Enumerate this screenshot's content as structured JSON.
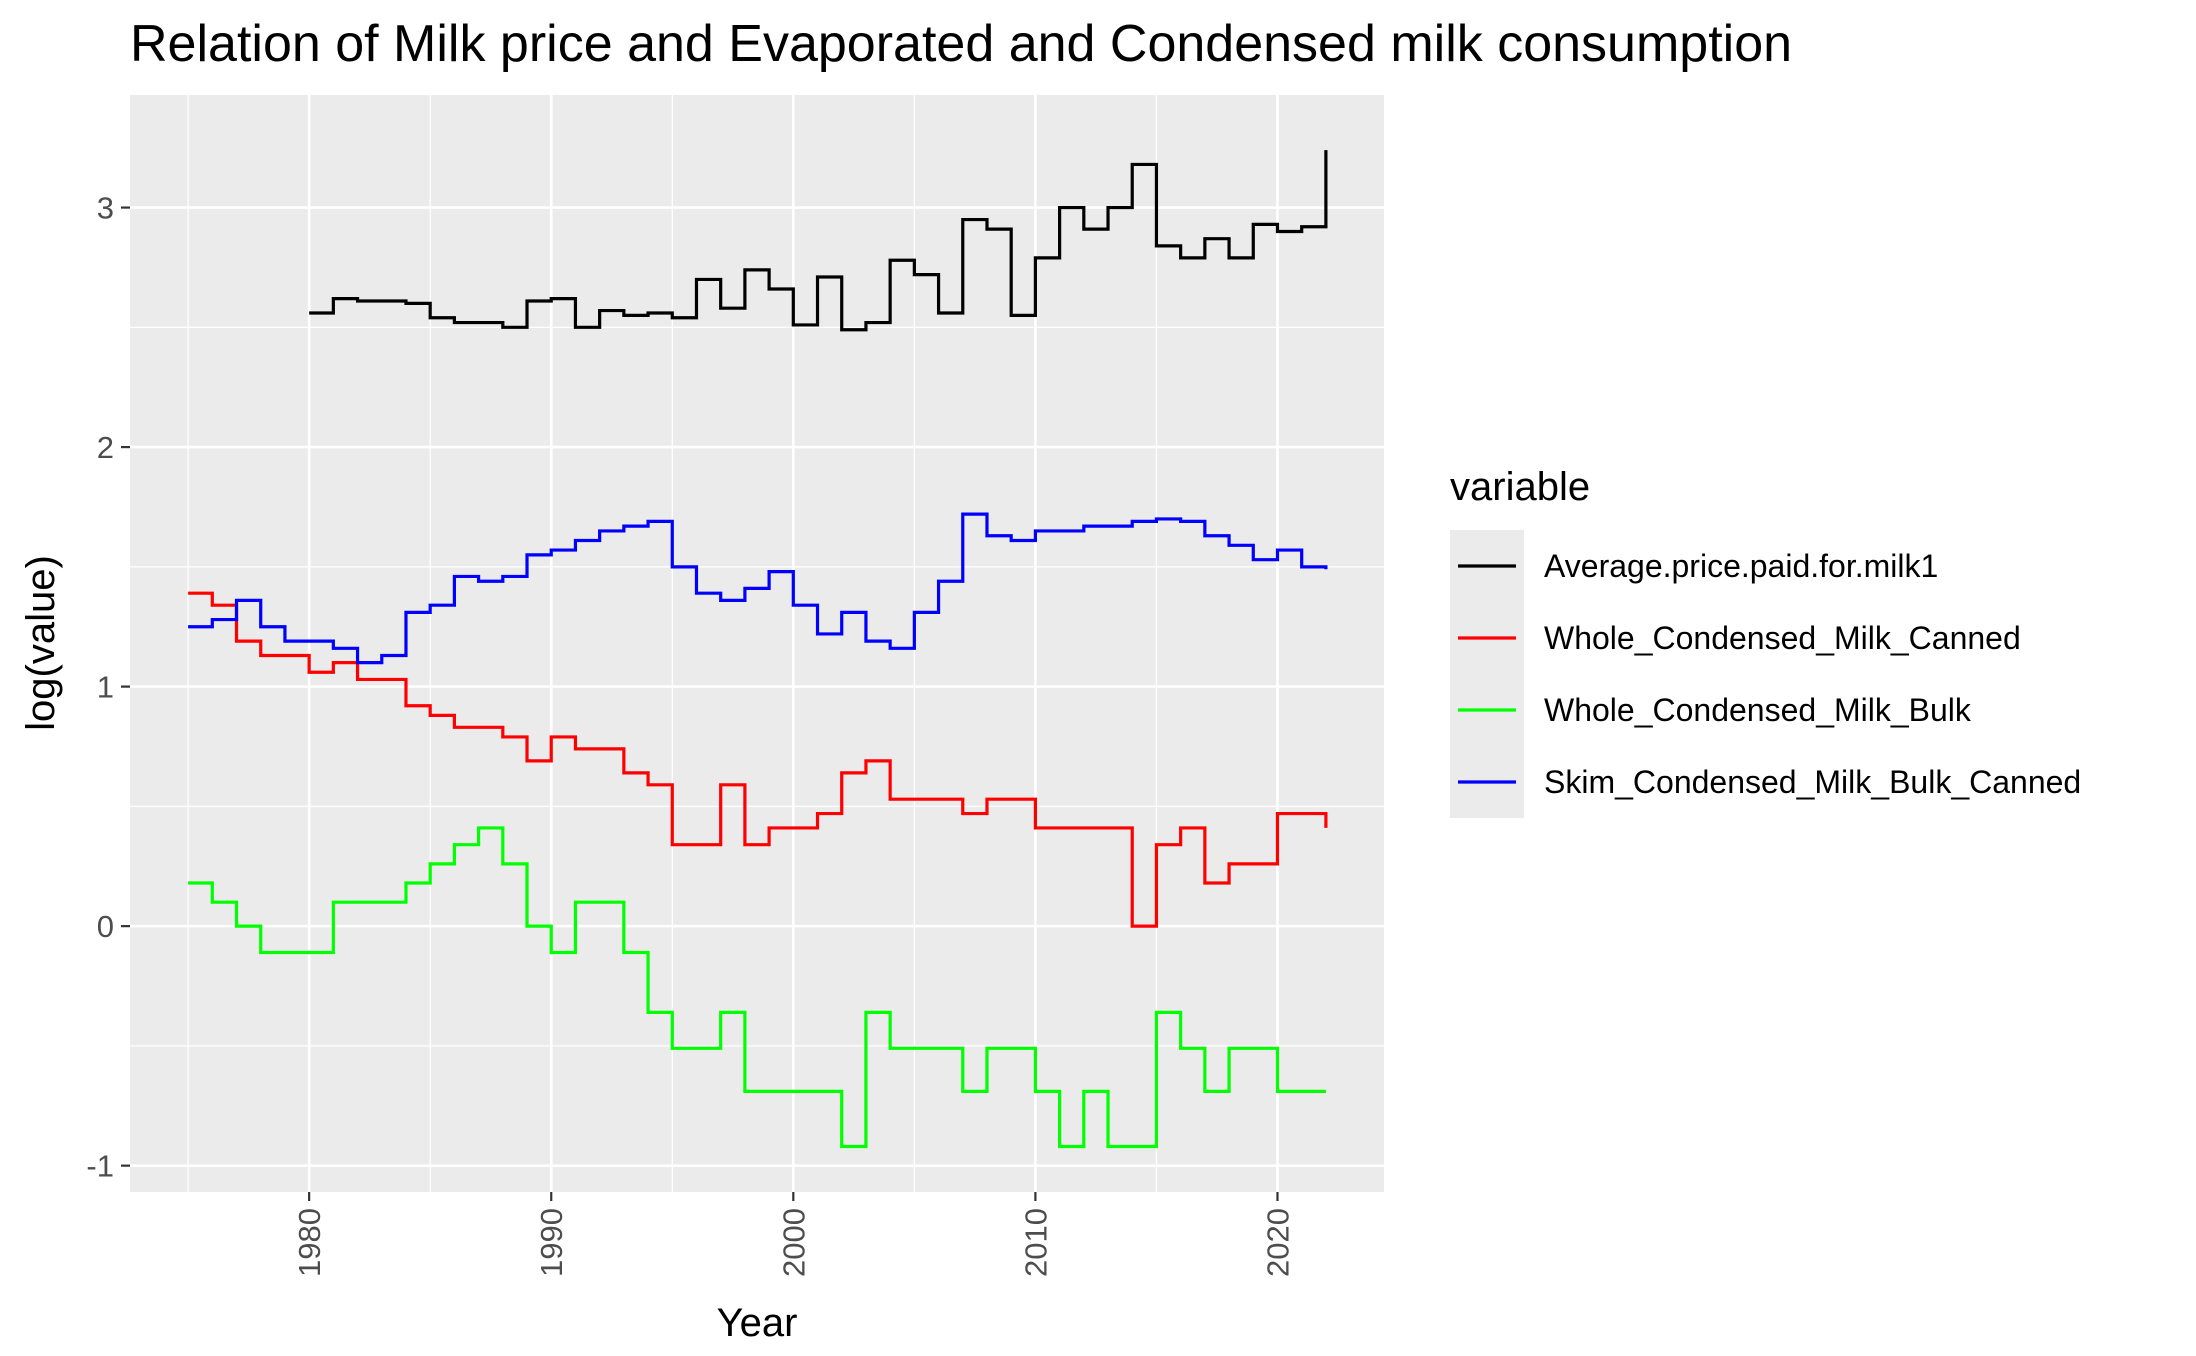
{
  "chart_data": {
    "type": "line",
    "step": true,
    "title": "Relation of Milk price and Evaporated and Condensed milk consumption",
    "xlabel": "Year",
    "ylabel": "log(value)",
    "xlim": [
      1972.6,
      2024.4
    ],
    "ylim": [
      -1.11,
      3.47
    ],
    "x_ticks": [
      1980,
      1990,
      2000,
      2010,
      2020
    ],
    "x_tick_labels": [
      "1980",
      "1990",
      "2000",
      "2010",
      "2020"
    ],
    "y_ticks": [
      -1,
      0,
      1,
      2,
      3
    ],
    "y_tick_labels": [
      "-1",
      "0",
      "1",
      "2",
      "3"
    ],
    "grid": true,
    "legend": {
      "title": "variable",
      "position": "right"
    },
    "panel_background": "#ebebeb",
    "series": [
      {
        "name": "Average.price.paid.for.milk1",
        "color": "#000000",
        "x": [
          1980,
          1981,
          1982,
          1983,
          1984,
          1985,
          1986,
          1987,
          1988,
          1989,
          1990,
          1991,
          1992,
          1993,
          1994,
          1995,
          1996,
          1997,
          1998,
          1999,
          2000,
          2001,
          2002,
          2003,
          2004,
          2005,
          2006,
          2007,
          2008,
          2009,
          2010,
          2011,
          2012,
          2013,
          2014,
          2015,
          2016,
          2017,
          2018,
          2019,
          2020,
          2021,
          2022
        ],
        "values": [
          2.56,
          2.62,
          2.61,
          2.61,
          2.6,
          2.54,
          2.52,
          2.52,
          2.5,
          2.61,
          2.62,
          2.5,
          2.57,
          2.55,
          2.56,
          2.54,
          2.7,
          2.58,
          2.74,
          2.66,
          2.51,
          2.71,
          2.49,
          2.52,
          2.78,
          2.72,
          2.56,
          2.95,
          2.91,
          2.55,
          2.79,
          3.0,
          2.91,
          3.0,
          3.18,
          2.84,
          2.79,
          2.87,
          2.79,
          2.93,
          2.9,
          2.92,
          3.24
        ]
      },
      {
        "name": "Whole_Condensed_Milk_Canned",
        "color": "#ff0000",
        "x": [
          1975,
          1976,
          1977,
          1978,
          1979,
          1980,
          1981,
          1982,
          1983,
          1984,
          1985,
          1986,
          1987,
          1988,
          1989,
          1990,
          1991,
          1992,
          1993,
          1994,
          1995,
          1996,
          1997,
          1998,
          1999,
          2000,
          2001,
          2002,
          2003,
          2004,
          2005,
          2006,
          2007,
          2008,
          2009,
          2010,
          2011,
          2012,
          2013,
          2014,
          2015,
          2016,
          2017,
          2018,
          2019,
          2020,
          2021,
          2022
        ],
        "values": [
          1.39,
          1.34,
          1.19,
          1.13,
          1.13,
          1.06,
          1.1,
          1.03,
          1.03,
          0.92,
          0.88,
          0.83,
          0.83,
          0.79,
          0.69,
          0.79,
          0.74,
          0.74,
          0.64,
          0.59,
          0.34,
          0.34,
          0.59,
          0.34,
          0.41,
          0.41,
          0.47,
          0.64,
          0.69,
          0.53,
          0.53,
          0.53,
          0.47,
          0.53,
          0.53,
          0.41,
          0.41,
          0.41,
          0.41,
          0.0,
          0.34,
          0.41,
          0.18,
          0.26,
          0.26,
          0.47,
          0.47,
          0.41
        ]
      },
      {
        "name": "Whole_Condensed_Milk_Bulk",
        "color": "#00ff00",
        "x": [
          1975,
          1976,
          1977,
          1978,
          1979,
          1980,
          1981,
          1982,
          1983,
          1984,
          1985,
          1986,
          1987,
          1988,
          1989,
          1990,
          1991,
          1992,
          1993,
          1994,
          1995,
          1996,
          1997,
          1998,
          1999,
          2000,
          2001,
          2002,
          2003,
          2004,
          2005,
          2006,
          2007,
          2008,
          2009,
          2010,
          2011,
          2012,
          2013,
          2014,
          2015,
          2016,
          2017,
          2018,
          2019,
          2020,
          2021,
          2022
        ],
        "values": [
          0.18,
          0.1,
          0.0,
          -0.11,
          -0.11,
          -0.11,
          0.1,
          0.1,
          0.1,
          0.18,
          0.26,
          0.34,
          0.41,
          0.26,
          0.0,
          -0.11,
          0.1,
          0.1,
          -0.11,
          -0.36,
          -0.51,
          -0.51,
          -0.36,
          -0.69,
          -0.69,
          -0.69,
          -0.69,
          -0.92,
          -0.36,
          -0.51,
          -0.51,
          -0.51,
          -0.69,
          -0.51,
          -0.51,
          -0.69,
          -0.92,
          -0.69,
          -0.92,
          -0.92,
          -0.36,
          -0.51,
          -0.69,
          -0.51,
          -0.51,
          -0.69,
          -0.69,
          -0.69
        ]
      },
      {
        "name": "Skim_Condensed_Milk_Bulk_Canned",
        "color": "#0000ff",
        "x": [
          1975,
          1976,
          1977,
          1978,
          1979,
          1980,
          1981,
          1982,
          1983,
          1984,
          1985,
          1986,
          1987,
          1988,
          1989,
          1990,
          1991,
          1992,
          1993,
          1994,
          1995,
          1996,
          1997,
          1998,
          1999,
          2000,
          2001,
          2002,
          2003,
          2004,
          2005,
          2006,
          2007,
          2008,
          2009,
          2010,
          2011,
          2012,
          2013,
          2014,
          2015,
          2016,
          2017,
          2018,
          2019,
          2020,
          2021,
          2022
        ],
        "values": [
          1.25,
          1.28,
          1.36,
          1.25,
          1.19,
          1.19,
          1.16,
          1.1,
          1.13,
          1.31,
          1.34,
          1.46,
          1.44,
          1.46,
          1.55,
          1.57,
          1.61,
          1.65,
          1.67,
          1.69,
          1.5,
          1.39,
          1.36,
          1.41,
          1.48,
          1.34,
          1.22,
          1.31,
          1.19,
          1.16,
          1.31,
          1.44,
          1.72,
          1.63,
          1.61,
          1.65,
          1.65,
          1.67,
          1.67,
          1.69,
          1.7,
          1.69,
          1.63,
          1.59,
          1.53,
          1.57,
          1.5,
          1.49
        ]
      }
    ]
  }
}
